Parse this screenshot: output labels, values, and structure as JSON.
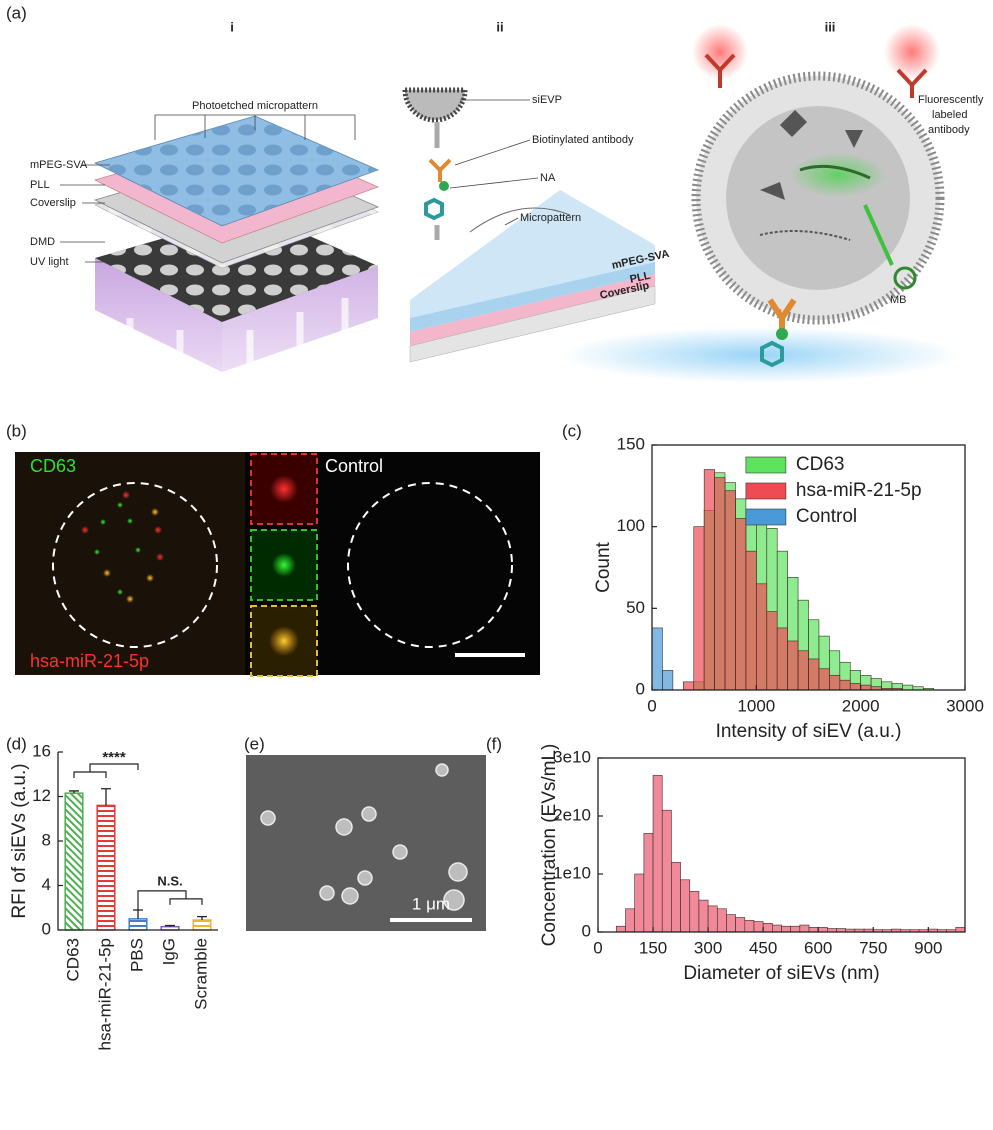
{
  "panel_labels": [
    "(a)",
    "(b)",
    "(c)",
    "(d)",
    "(e)",
    "(f)"
  ],
  "diagram": {
    "subpanels": [
      "i",
      "ii",
      "iii"
    ],
    "labels_i": [
      "Photoetched micropattern",
      "mPEG-SVA",
      "PLL",
      "Coverslip",
      "DMD",
      "UV light"
    ],
    "labels_ii": [
      "siEVP",
      "Biotinylated antibody",
      "NA",
      "Micropattern",
      "mPEG-SVA",
      "PLL",
      "Coverslip"
    ],
    "labels_iii": [
      "Fluorescently",
      "labeled",
      "antibody",
      "MB"
    ]
  },
  "image_b": {
    "labels": [
      "CD63",
      "Control",
      "hsa-miR-21-5p"
    ]
  },
  "image_e": {
    "scale_label": "1 μm"
  },
  "chart_data": [
    {
      "type": "histogram",
      "xlabel": "Intensity of siEV (a.u.)",
      "ylabel": "Count",
      "bins": [
        0,
        100,
        200,
        300,
        400,
        500,
        600,
        700,
        800,
        900,
        1000,
        1100,
        1200,
        1300,
        1400,
        1500,
        1600,
        1700,
        1800,
        1900,
        2000,
        2100,
        2200,
        2300,
        2400,
        2500,
        2600,
        2700,
        2800,
        2900,
        3000
      ],
      "series": [
        {
          "name": "CD63",
          "color": "#5fe35f",
          "values": [
            0,
            0,
            0,
            0,
            5,
            110,
            133,
            127,
            117,
            109,
            104,
            99,
            85,
            69,
            55,
            43,
            33,
            24,
            17,
            12,
            9,
            7,
            5,
            4,
            3,
            2,
            1,
            0,
            0,
            0
          ]
        },
        {
          "name": "hsa-miR-21-5p",
          "color": "#ee4b55",
          "values": [
            0,
            0,
            0,
            5,
            100,
            135,
            130,
            122,
            105,
            85,
            65,
            48,
            38,
            30,
            24,
            19,
            13,
            9,
            6,
            4,
            3,
            2,
            1,
            1,
            0,
            0,
            0,
            0,
            0,
            0
          ]
        },
        {
          "name": "Control",
          "color": "#4b9ad8",
          "values": [
            38,
            12,
            0,
            0,
            0,
            0,
            0,
            0,
            0,
            0,
            0,
            0,
            0,
            0,
            0,
            0,
            0,
            0,
            0,
            0,
            0,
            0,
            0,
            0,
            0,
            0,
            0,
            0,
            0,
            0
          ]
        }
      ],
      "xlim": [
        0,
        3000
      ],
      "xticks": [
        0,
        1000,
        2000,
        3000
      ],
      "ylim": [
        0,
        150
      ],
      "yticks": [
        0,
        50,
        100,
        150
      ],
      "legend": "upper right"
    },
    {
      "type": "bar",
      "ylabel": "RFI of siEVs (a.u.)",
      "categories": [
        "CD63",
        "hsa-miR-21-5p",
        "PBS",
        "IgG",
        "Scramble"
      ],
      "values": [
        12.3,
        11.2,
        1.0,
        0.3,
        0.9
      ],
      "errors": [
        0.2,
        1.5,
        0.8,
        0.1,
        0.3
      ],
      "colors": [
        "#4caf50",
        "#e53935",
        "#3d7fd0",
        "#7e57c2",
        "#f2b233"
      ],
      "ylim": [
        0,
        16
      ],
      "yticks": [
        0,
        4,
        8,
        12,
        16
      ],
      "annotations": [
        "****",
        "N.S."
      ]
    },
    {
      "type": "histogram",
      "xlabel": "Diameter of siEVs (nm)",
      "ylabel": "Concentration (EVs/mL)",
      "bins": [
        0,
        25,
        50,
        75,
        100,
        125,
        150,
        175,
        200,
        225,
        250,
        275,
        300,
        325,
        350,
        375,
        400,
        425,
        450,
        475,
        500,
        525,
        550,
        575,
        600,
        625,
        650,
        675,
        700,
        725,
        750,
        775,
        800,
        825,
        850,
        875,
        900,
        925,
        950,
        975,
        1000
      ],
      "color": "#f08a9a",
      "values": [
        0,
        0,
        1000000000.0,
        4000000000.0,
        10000000000.0,
        17000000000.0,
        27000000000.0,
        21000000000.0,
        12000000000.0,
        9000000000.0,
        7000000000.0,
        5500000000.0,
        4500000000.0,
        4000000000.0,
        3000000000.0,
        2500000000.0,
        2000000000.0,
        1800000000.0,
        1500000000.0,
        1200000000.0,
        1000000000.0,
        1000000000.0,
        1200000000.0,
        800000000.0,
        800000000.0,
        600000000.0,
        600000000.0,
        500000000.0,
        500000000.0,
        500000000.0,
        400000000.0,
        400000000.0,
        500000000.0,
        400000000.0,
        400000000.0,
        400000000.0,
        500000000.0,
        400000000.0,
        400000000.0,
        800000000.0
      ],
      "xlim": [
        0,
        1000
      ],
      "xticks": [
        0,
        150,
        300,
        450,
        600,
        750,
        900
      ],
      "ylim": [
        0,
        30000000000.0
      ],
      "yticks": [
        0,
        {
          "value": 10000000000.0,
          "label": "1e10"
        },
        {
          "value": 20000000000.0,
          "label": "2e10"
        },
        {
          "value": 30000000000.0,
          "label": "3e10"
        }
      ]
    }
  ]
}
